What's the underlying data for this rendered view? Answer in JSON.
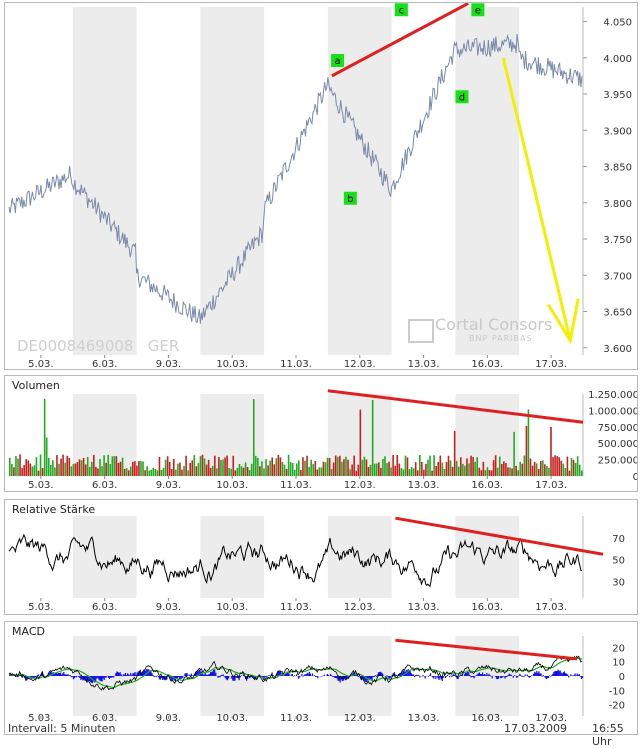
{
  "chart_data": [
    {
      "type": "line",
      "panel": "price",
      "isin": "DE0008469008",
      "exchange": "GER",
      "x_ticks": [
        "5.03.",
        "6.03.",
        "9.03.",
        "10.03.",
        "11.03.",
        "12.03.",
        "13.03.",
        "16.03.",
        "17.03."
      ],
      "y_ticks": [
        "4.050",
        "4.000",
        "3.950",
        "3.900",
        "3.850",
        "3.800",
        "3.750",
        "3.700",
        "3.650",
        "3.600"
      ],
      "ylim": [
        3590,
        4070
      ],
      "x": [
        "5.03.",
        "6.03.",
        "9.03.",
        "10.03.",
        "11.03.",
        "12.03.",
        "13.03.",
        "16.03.",
        "17.03."
      ],
      "series": [
        {
          "values_open": [
            3790,
            3830,
            3700,
            3640,
            3790,
            3960,
            3820,
            4010,
            4000
          ],
          "values_close": [
            3840,
            3730,
            3640,
            3760,
            3960,
            3820,
            4010,
            4020,
            3970
          ]
        }
      ],
      "annotations": {
        "labels": [
          "a",
          "b",
          "c",
          "d",
          "e"
        ],
        "label_color": "#18e018",
        "trend_color": "#e02020",
        "arrow_color": "#f0f000"
      },
      "watermark": {
        "brand": "Cortal Consors",
        "sub": "BNP PARIBAS"
      }
    },
    {
      "type": "bar",
      "panel": "volume",
      "title": "Volumen",
      "y_ticks": [
        "1.250.000",
        "1.000.000",
        "750.000",
        "500.000",
        "250.000",
        "0"
      ],
      "ylim": [
        0,
        1250000
      ],
      "x_ticks": [
        "5.03.",
        "6.03.",
        "9.03.",
        "10.03.",
        "11.03.",
        "12.03.",
        "13.03.",
        "16.03.",
        "17.03."
      ],
      "colors": {
        "up": "#22aa22",
        "down": "#c81e1e"
      }
    },
    {
      "type": "line",
      "panel": "rsi",
      "title": "Relative Stärke",
      "y_ticks": [
        "70",
        "50",
        "30"
      ],
      "ylim": [
        15,
        90
      ],
      "x_ticks": [
        "5.03.",
        "6.03.",
        "9.03.",
        "10.03.",
        "11.03.",
        "12.03.",
        "13.03.",
        "16.03.",
        "17.03."
      ]
    },
    {
      "type": "line",
      "panel": "macd",
      "title": "MACD",
      "y_ticks": [
        "20",
        "10",
        "0",
        "-10",
        "-20"
      ],
      "ylim": [
        -28,
        28
      ],
      "x_ticks": [
        "5.03.",
        "6.03.",
        "9.03.",
        "10.03.",
        "11.03.",
        "12.03.",
        "13.03.",
        "16.03.",
        "17.03."
      ],
      "colors": {
        "macd": "#000000",
        "signal": "#22aa22",
        "histogram": "#1010ee"
      }
    }
  ],
  "footer": {
    "interval": "Intervall: 5 Minuten",
    "date": "17.03.2009",
    "time": "16:55 Uhr"
  }
}
